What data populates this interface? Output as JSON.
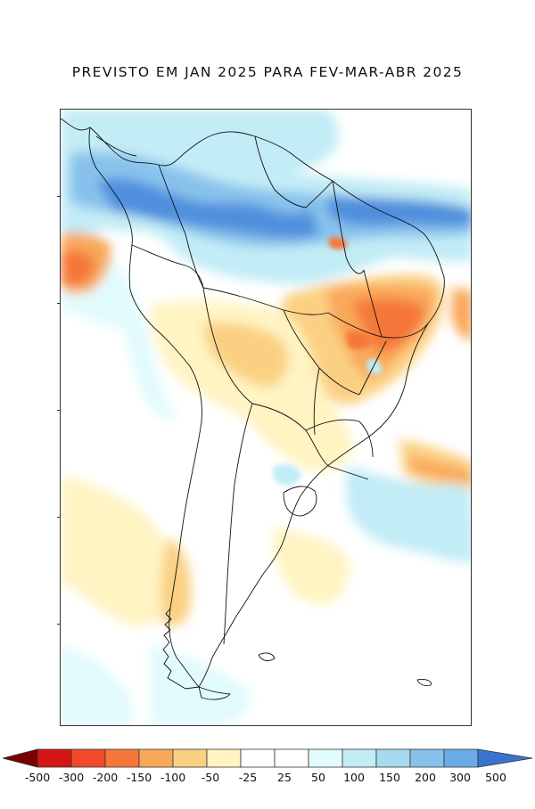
{
  "title": "PREVISTO EM JAN 2025 PARA FEV-MAR-ABR 2025",
  "colors": {
    "neg500": "#7a0000",
    "neg300": "#d41515",
    "neg200": "#f04a2a",
    "neg150": "#f5773a",
    "neg100": "#f9a85a",
    "neg50": "#fbd083",
    "neg25": "#fff4c2",
    "zero": "#ffffff",
    "pos25": "#e2fbfd",
    "pos50": "#c2ecf6",
    "pos100": "#a7d9ef",
    "pos150": "#88c2ec",
    "pos200": "#6aaae6",
    "pos300": "#4f8fdd",
    "pos500": "#3b74d0"
  },
  "legend": {
    "labels": [
      "-500",
      "-300",
      "-200",
      "-150",
      "-100",
      "-50",
      "-25",
      "25",
      "50",
      "100",
      "150",
      "200",
      "300",
      "500"
    ]
  }
}
